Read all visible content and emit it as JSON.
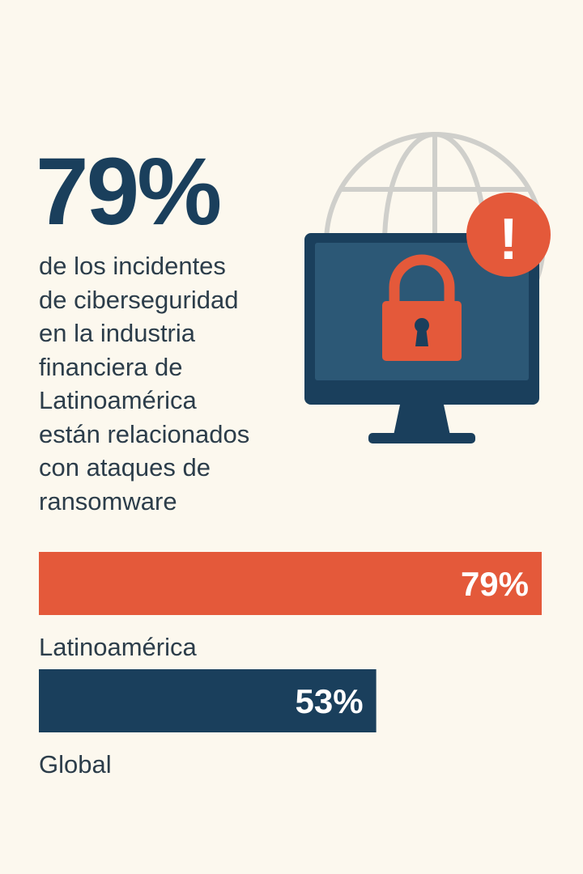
{
  "headline": {
    "value": "79%"
  },
  "description": {
    "lines": [
      "de los incidentes",
      "de ciberseguridad",
      "en la industria",
      "financiera de",
      "Latinoamérica",
      "están relacionados",
      "con ataques de",
      "ransomware"
    ]
  },
  "illustration": {
    "icons": [
      "globe-icon",
      "monitor-icon",
      "padlock-icon",
      "alert-icon"
    ],
    "alert_symbol": "!"
  },
  "colors": {
    "background": "#fcf8ee",
    "navy": "#1a3f5c",
    "orange": "#e4593a",
    "text": "#2c3d4a",
    "globe": "#cfcfcb",
    "screen": "#2c5876"
  },
  "chart_data": {
    "type": "bar",
    "orientation": "horizontal",
    "categories": [
      "Latinoamérica",
      "Global"
    ],
    "values": [
      79,
      53
    ],
    "value_labels": [
      "79%",
      "53%"
    ],
    "bar_colors": [
      "#e4593a",
      "#1a3f5c"
    ],
    "xlim": [
      0,
      79
    ],
    "grid": false
  }
}
